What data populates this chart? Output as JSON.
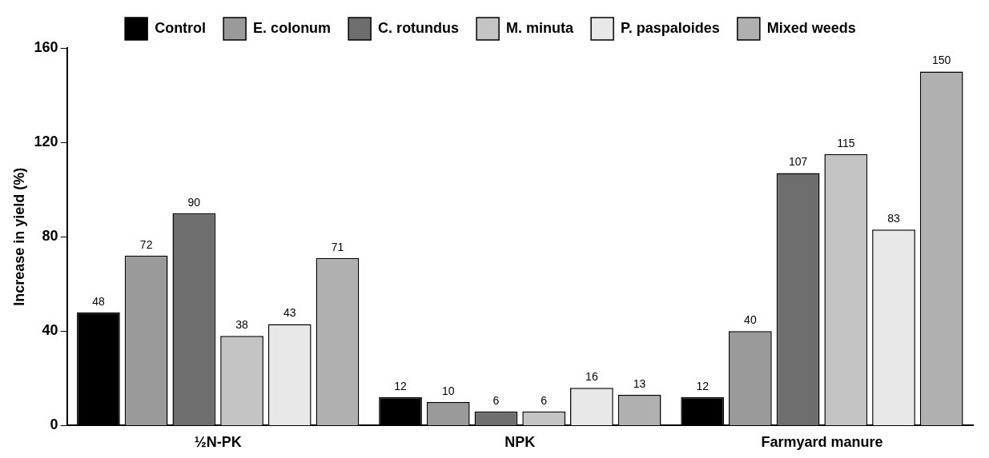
{
  "chart_data": {
    "type": "bar",
    "ylabel": "Increase in yield (%)",
    "categories": [
      "½N-PK",
      "NPK",
      "Farmyard manure"
    ],
    "series": [
      {
        "name": "Control",
        "color": "#000000",
        "values": [
          48,
          12,
          12
        ]
      },
      {
        "name": "E. colonum",
        "color": "#9a9a9a",
        "values": [
          72,
          10,
          40
        ]
      },
      {
        "name": "C. rotundus",
        "color": "#6e6e6e",
        "values": [
          90,
          6,
          107
        ]
      },
      {
        "name": "M. minuta",
        "color": "#c4c4c4",
        "values": [
          38,
          6,
          115
        ]
      },
      {
        "name": "P. paspaloides",
        "color": "#e8e8e8",
        "values": [
          43,
          16,
          83
        ]
      },
      {
        "name": "Mixed weeds",
        "color": "#b0b0b0",
        "values": [
          71,
          13,
          150
        ]
      }
    ],
    "ylim": [
      0,
      160
    ],
    "yticks": [
      0,
      40,
      80,
      120,
      160
    ],
    "grid": false,
    "legend": "top",
    "data_labels": true
  }
}
